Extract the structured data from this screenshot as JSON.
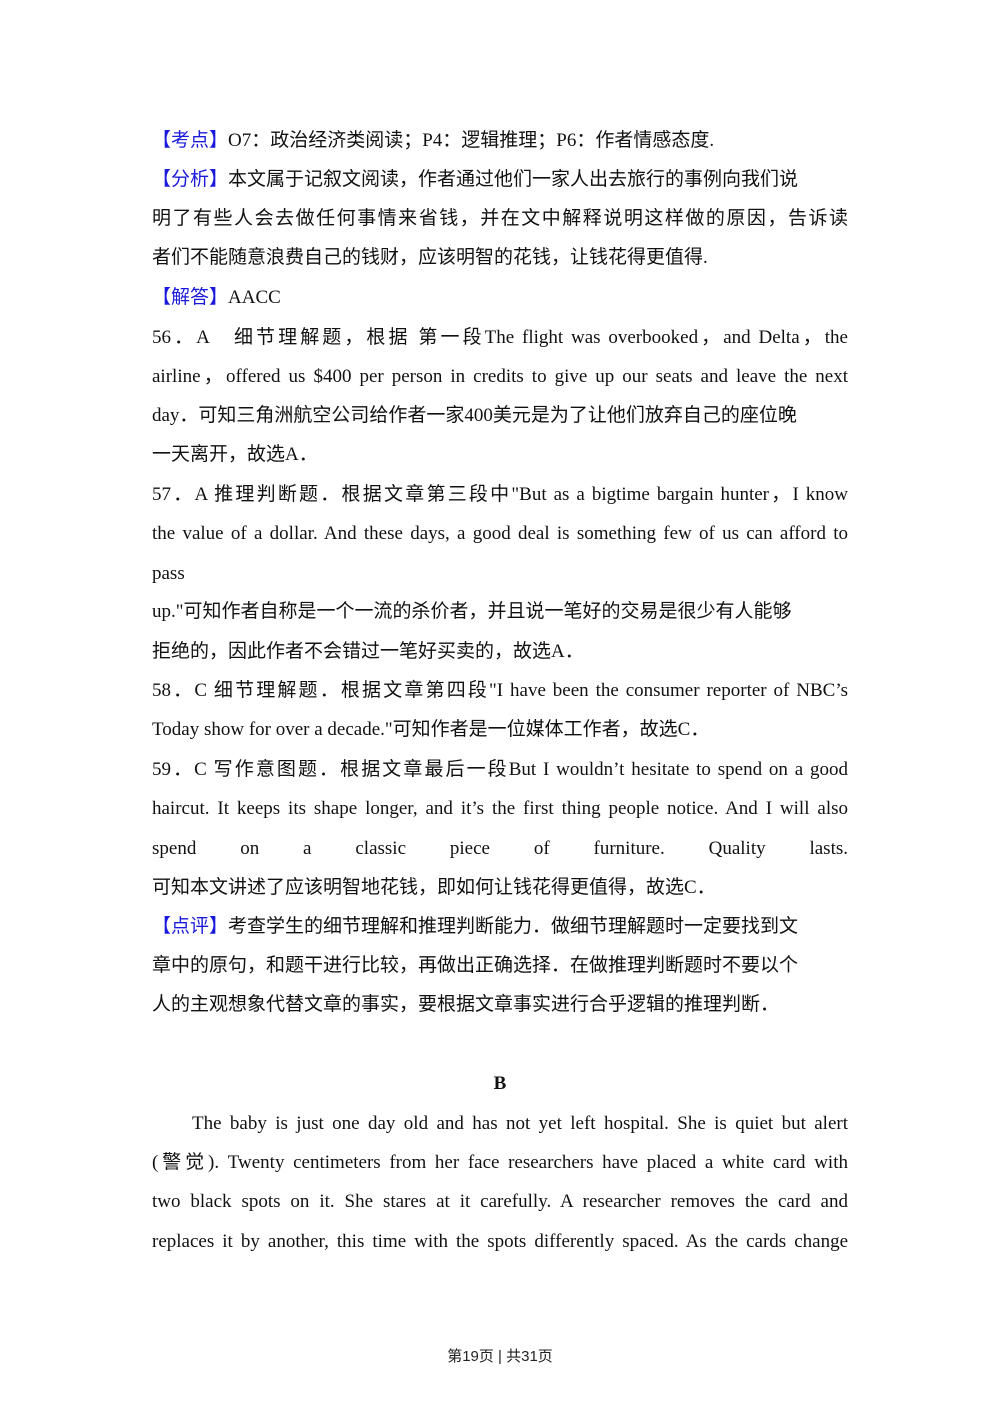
{
  "accent_color": "#1a1adc",
  "kaodian": {
    "label": "【考点】",
    "text": "O7：政治经济类阅读；P4：逻辑推理；P6：作者情感态度."
  },
  "fenxi": {
    "label": "【分析】",
    "lines": [
      "本文属于记叙文阅读，作者通过他们一家人出去旅行的事例向我们说",
      "明了有些人会去做任何事情来省钱，并在文中解释说明这样做的原因，告诉读",
      "者们不能随意浪费自己的钱财，应该明智的花钱，让钱花得更值得."
    ]
  },
  "jieda": {
    "label": "【解答】",
    "text": "AACC"
  },
  "q56": [
    "56．A　细节理解题，根据 第一段The flight was overbooked，and Delta，the",
    "airline，offered us $400 per person in credits to give up our seats and leave the next",
    "day．可知三角洲航空公司给作者一家400美元是为了让他们放弃自己的座位晚",
    "一天离开，故选A．"
  ],
  "q57": [
    "57．A 推理判断题．根据文章第三段中\"But as a bigtime bargain hunter，I know",
    "the value of a dollar. And these days, a good deal is something few of us can afford to",
    "pass",
    "up.\"可知作者自称是一个一流的杀价者，并且说一笔好的交易是很少有人能够",
    "拒绝的，因此作者不会错过一笔好买卖的，故选A．"
  ],
  "q58": [
    "58．C 细节理解题．根据文章第四段\"I have been the consumer reporter of NBC’s",
    "Today show for over a decade.\"可知作者是一位媒体工作者，故选C．"
  ],
  "q59": [
    "59．C 写作意图题．根据文章最后一段But I wouldn’t hesitate to spend on a good",
    "haircut. It keeps its shape longer, and it’s the first thing people notice. And I will also",
    "spend on a classic piece of furniture. Quality lasts.",
    "可知本文讲述了应该明智地花钱，即如何让钱花得更值得，故选C．"
  ],
  "dianping": {
    "label": "【点评】",
    "lines": [
      "考查学生的细节理解和推理判断能力．做细节理解题时一定要找到文",
      "章中的原句，和题干进行比较，再做出正确选择．在做推理判断题时不要以个",
      "人的主观想象代替文章的事实，要根据文章事实进行合乎逻辑的推理判断．"
    ]
  },
  "section_b": {
    "heading": "B",
    "lines": [
      "The baby is just one day old and has not yet left hospital. She is quiet but alert",
      "(警觉). Twenty centimeters from her face researchers have placed a white card with",
      "two black spots on it. She stares at it carefully. A researcher removes the card and",
      "replaces it by another, this time with the spots differently spaced. As the cards change"
    ]
  },
  "footer": "第19页 | 共31页"
}
